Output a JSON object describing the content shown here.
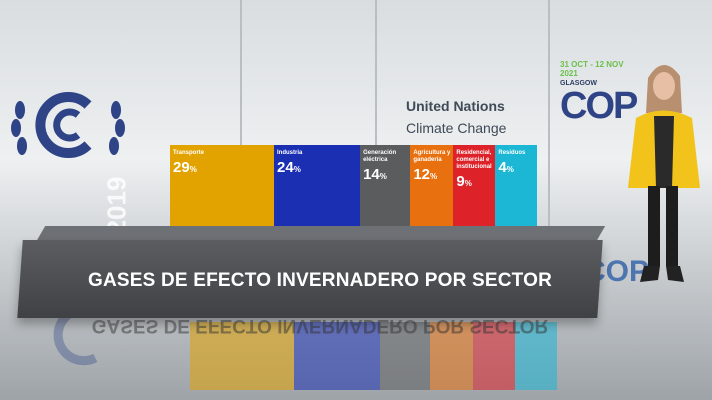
{
  "background": {
    "un_title": "United Nations",
    "un_subtitle": "Climate Change",
    "cop_dates": "31 OCT - 12 NOV 2021",
    "cop_city": "GLASGOW",
    "cop_word": "COP",
    "cop_reflection": "COP"
  },
  "chart_data": {
    "type": "bar",
    "title": "GASES DE EFECTO INVERNADERO POR SECTOR",
    "year_label": "2019",
    "categories": [
      "Transporte",
      "Industria",
      "Generación eléctrica",
      "Agricultura y ganadería",
      "Residencial, comercial e institucional",
      "Residuos"
    ],
    "values": [
      29,
      24,
      14,
      12,
      9,
      4
    ],
    "unit": "%",
    "colors": [
      "#e2a300",
      "#1b2fb3",
      "#5b5c5e",
      "#e8700f",
      "#dd2329",
      "#1cb7d5"
    ]
  }
}
